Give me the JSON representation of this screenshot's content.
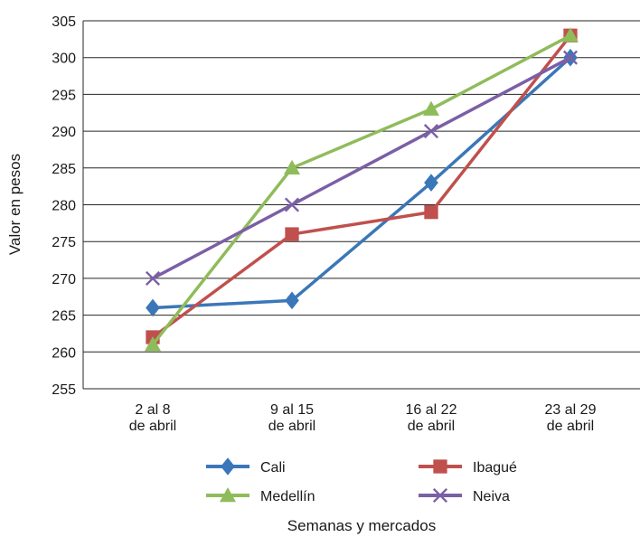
{
  "chart_data": {
    "type": "line",
    "title": "",
    "xlabel": "Semanas y mercados",
    "ylabel": "Valor en pesos",
    "ylim": [
      255,
      305
    ],
    "ytick_step": 5,
    "grid": true,
    "legend_position": "bottom",
    "categories": [
      [
        "2 al 8",
        "de abril"
      ],
      [
        "9 al 15",
        "de abril"
      ],
      [
        "16 al 22",
        "de abril"
      ],
      [
        "23 al 29",
        "de abril"
      ]
    ],
    "series": [
      {
        "name": "Cali",
        "values": [
          266,
          267,
          283,
          300
        ],
        "color": "#3a77b8",
        "marker": "diamond"
      },
      {
        "name": "Ibagué",
        "values": [
          262,
          276,
          279,
          303
        ],
        "color": "#c0504d",
        "marker": "square"
      },
      {
        "name": "Medellín",
        "values": [
          261,
          285,
          293,
          303
        ],
        "color": "#8fbc5a",
        "marker": "triangle"
      },
      {
        "name": "Neiva",
        "values": [
          270,
          280,
          290,
          300
        ],
        "color": "#7b5fa6",
        "marker": "x"
      }
    ]
  }
}
